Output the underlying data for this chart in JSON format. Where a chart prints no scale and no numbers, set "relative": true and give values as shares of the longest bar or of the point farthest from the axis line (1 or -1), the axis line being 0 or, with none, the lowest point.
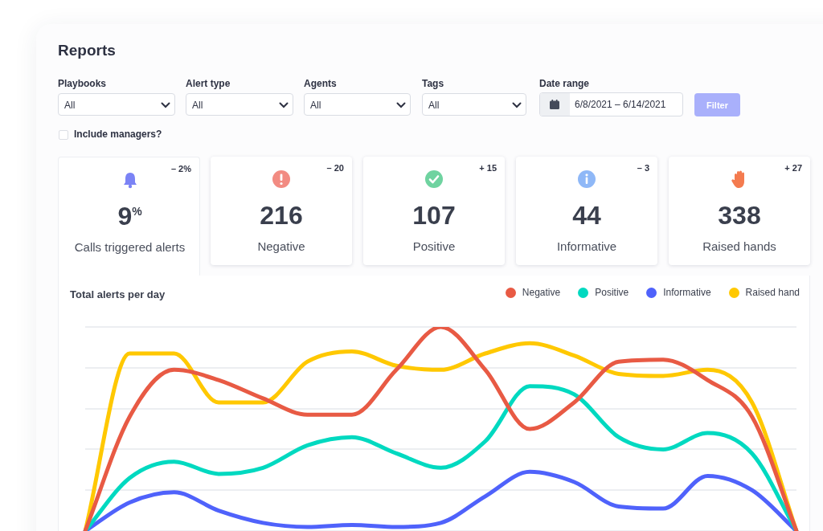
{
  "chart_data": [
    {
      "type": "other",
      "title": "Reports",
      "categories": [
        "Playbooks",
        "Alert type",
        "Agents",
        "Tags",
        "Date range"
      ],
      "annotations": [
        "All",
        "All",
        "All",
        "All",
        "6/8/2021 – 6/14/2021",
        "Filter",
        "Include managers?"
      ]
    },
    {
      "type": "other",
      "categories": [
        "Calls triggered alerts",
        "Negative",
        "Positive",
        "Informative",
        "Raised hands"
      ],
      "value_labels": [
        "9$^{%}$",
        "216",
        "107",
        "44",
        "338"
      ],
      "annotations": [
        "– 2%",
        "– 20",
        "+ 15",
        "– 3",
        "+ 27"
      ]
    },
    {
      "type": "line",
      "title": "Total alerts per day",
      "relative": true,
      "legend": "top right",
      "grid": true,
      "marker": "none",
      "line_style": "solid",
      "categories": [
        null,
        null,
        null,
        null,
        null,
        null,
        null,
        null,
        null,
        null,
        null,
        null,
        null,
        null,
        null,
        null,
        null
      ],
      "series": [
        {
          "name": "Negative",
          "color": "#e85a44",
          "values": [
            0,
            0.56,
            0.79,
            0.74,
            0.65,
            0.57,
            0.57,
            0.79,
            1,
            0.79,
            0.5,
            0.63,
            0.83,
            0.84,
            0.74,
            0.56,
            0
          ]
        },
        {
          "name": "Positive",
          "color": "#00d9c0",
          "values": [
            0,
            0.26,
            0.34,
            0.28,
            0.31,
            0.42,
            0.46,
            0.38,
            0.31,
            0.44,
            0.71,
            0.67,
            0.46,
            0.4,
            0.48,
            0.38,
            0
          ]
        },
        {
          "name": "Informative",
          "color": "#4f62fb",
          "values": [
            0,
            0.14,
            0.19,
            0.1,
            0.04,
            0.02,
            0.03,
            0.02,
            0.04,
            0.17,
            0.29,
            0.24,
            0.12,
            0.11,
            0.27,
            0.2,
            0
          ]
        },
        {
          "name": "Raised hand",
          "color": "#ffc800",
          "values": [
            0,
            0.87,
            0.87,
            0.63,
            0.63,
            0.83,
            0.88,
            0.81,
            0.79,
            0.87,
            0.92,
            0.86,
            0.77,
            0.76,
            0.79,
            0.63,
            0
          ]
        }
      ]
    }
  ]
}
